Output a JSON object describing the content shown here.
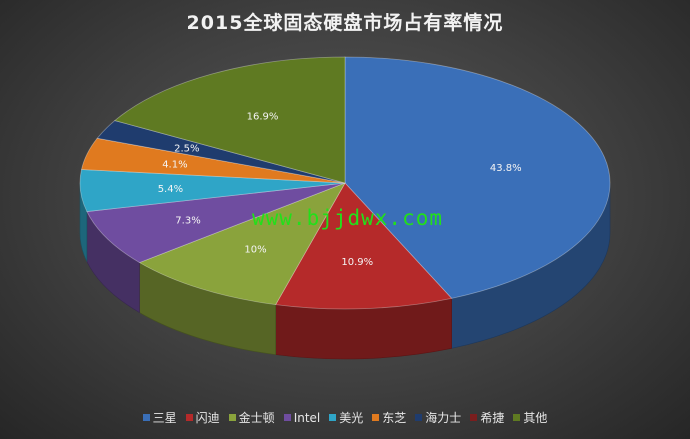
{
  "title": "2015全球固态硬盘市场占有率情况",
  "watermark": "www.bjjdwx.com",
  "chart_data": {
    "type": "pie",
    "title": "2015全球固态硬盘市场占有率情况",
    "style": "3d",
    "legend_position": "bottom",
    "slices": [
      {
        "label": "三星",
        "value": 43.8,
        "display": "43.8%",
        "color": "#3a6fb8"
      },
      {
        "label": "闪迪",
        "value": 10.9,
        "display": "10.9%",
        "color": "#b52a2a"
      },
      {
        "label": "金士顿",
        "value": 10,
        "display": "10%",
        "color": "#8aa33c"
      },
      {
        "label": "Intel",
        "value": 7.3,
        "display": "7.3%",
        "color": "#6f4da0"
      },
      {
        "label": "美光",
        "value": 5.4,
        "display": "5.4%",
        "color": "#2fa5c7"
      },
      {
        "label": "东芝",
        "value": 4.1,
        "display": "4.1%",
        "color": "#e07a1f"
      },
      {
        "label": "海力士",
        "value": 2.5,
        "display": "2.5%",
        "color": "#1f3c6e"
      },
      {
        "label": "希捷",
        "value": 0,
        "display": "",
        "color": "#7a1e1e"
      },
      {
        "label": "其他",
        "value": 16.9,
        "display": "16.9%",
        "color": "#5f7a22"
      }
    ]
  }
}
